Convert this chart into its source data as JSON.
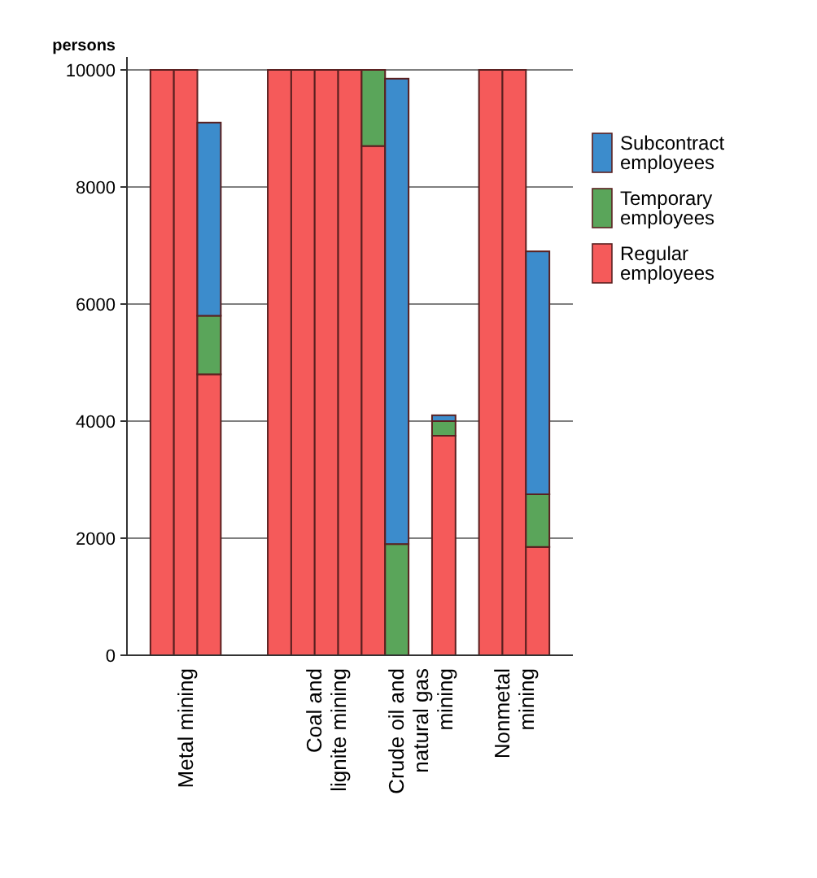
{
  "chart_data": {
    "type": "bar",
    "stacked": true,
    "ylabel": "persons",
    "categories": [
      null,
      null,
      "Metal mining",
      null,
      null,
      null,
      null,
      null,
      "Coal and lignite mining",
      null,
      null,
      null,
      "Crude oil and natural gas mining",
      null,
      null,
      null,
      "Nonmetal mining",
      null,
      null
    ],
    "series": [
      {
        "name": "Regular employees",
        "color": "#f55a5a",
        "values": [
          null,
          10000,
          10000,
          4800,
          null,
          null,
          10000,
          10000,
          10000,
          10000,
          8700,
          null,
          null,
          3750,
          null,
          10000,
          10000,
          1850,
          null
        ]
      },
      {
        "name": "Temporary employees",
        "color": "#5aa55a",
        "values": [
          null,
          null,
          null,
          1000,
          null,
          null,
          null,
          null,
          null,
          null,
          1300,
          1900,
          null,
          250,
          null,
          null,
          null,
          900,
          null
        ]
      },
      {
        "name": "Subcontract employees",
        "color": "#3c8ccc",
        "values": [
          null,
          null,
          null,
          3300,
          null,
          null,
          null,
          null,
          null,
          null,
          null,
          7950,
          null,
          100,
          null,
          null,
          null,
          4150,
          null
        ]
      }
    ],
    "ylim": [
      0,
      10000
    ],
    "yticks": [
      0,
      2000,
      4000,
      6000,
      8000,
      10000
    ],
    "grid": "y",
    "legend": "right"
  }
}
